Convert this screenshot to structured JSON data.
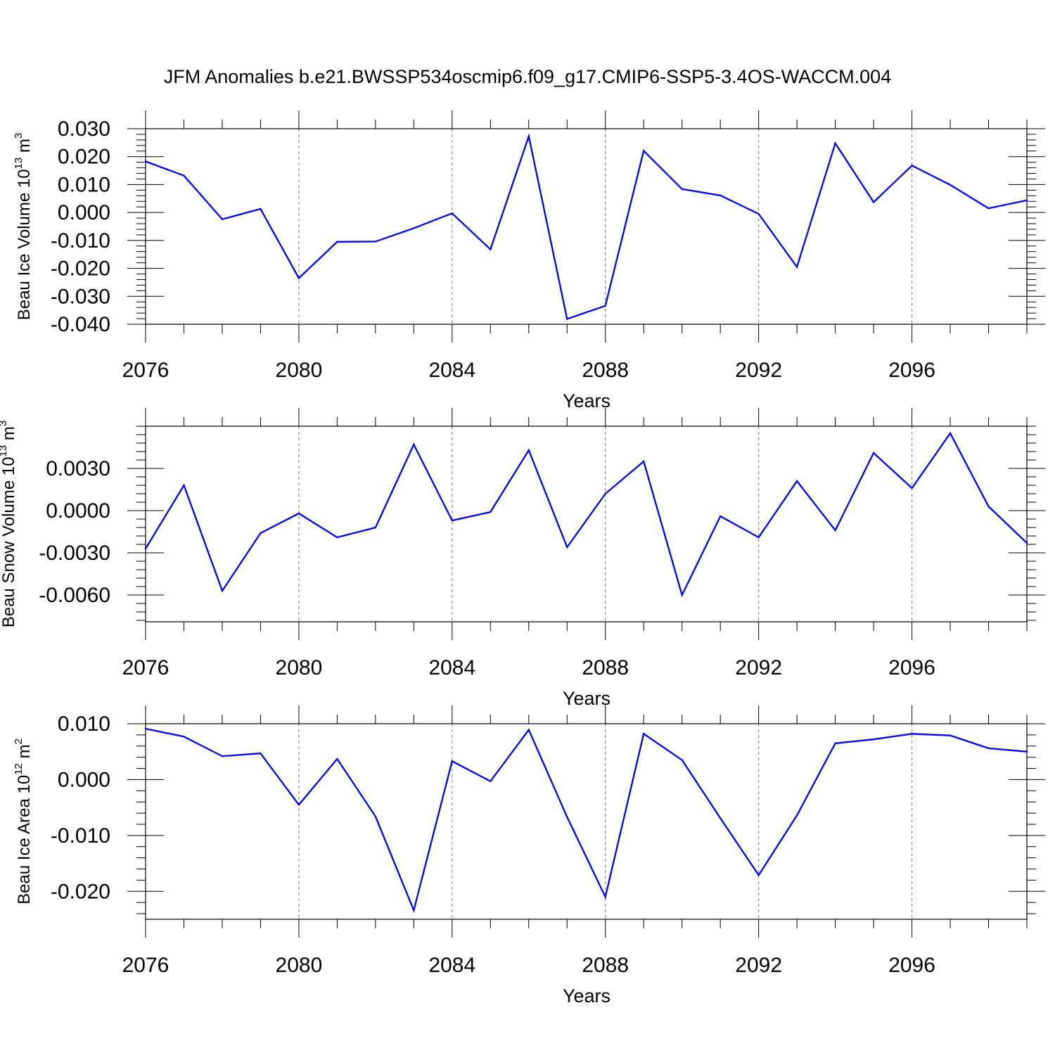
{
  "chart_data": {
    "title": "JFM Anomalies b.e21.BWSSP534oscmip6.f09_g17.CMIP6-SSP5-3.4OS-WACCM.004",
    "years": [
      2076,
      2077,
      2078,
      2079,
      2080,
      2081,
      2082,
      2083,
      2084,
      2085,
      2086,
      2087,
      2088,
      2089,
      2090,
      2091,
      2092,
      2093,
      2094,
      2095,
      2096,
      2097,
      2098,
      2099
    ],
    "panels": [
      {
        "type": "line",
        "ylabel": "Beau Ice Volume 10",
        "ylabel_exp": "13",
        "ylabel_unit": " m",
        "ylabel_unit_exp": "3",
        "xlabel": "Years",
        "xticks": [
          2076,
          2080,
          2084,
          2088,
          2092,
          2096
        ],
        "xlim": [
          2076,
          2099
        ],
        "ylim": [
          -0.04,
          0.03
        ],
        "yticks": [
          -0.04,
          -0.03,
          -0.02,
          -0.01,
          0.0,
          0.01,
          0.02,
          0.03
        ],
        "ytick_labels": [
          "-0.040",
          "-0.030",
          "-0.020",
          "-0.010",
          "0.000",
          "0.010",
          "0.020",
          "0.030"
        ],
        "minor_step": 0.002,
        "color": "#0000ff",
        "values": [
          0.0183,
          0.0132,
          -0.0024,
          0.0013,
          -0.0235,
          -0.0105,
          -0.0104,
          -0.0056,
          -0.0003,
          -0.0132,
          0.0273,
          -0.0381,
          -0.0334,
          0.0221,
          0.0084,
          0.0061,
          -0.0005,
          -0.0195,
          0.0248,
          0.0037,
          0.0168,
          0.0099,
          0.0015,
          0.0044
        ]
      },
      {
        "type": "line",
        "ylabel": "Beau Snow Volume 10",
        "ylabel_exp": "13",
        "ylabel_unit": " m",
        "ylabel_unit_exp": "3",
        "xlabel": "Years",
        "xticks": [
          2076,
          2080,
          2084,
          2088,
          2092,
          2096
        ],
        "xlim": [
          2076,
          2099
        ],
        "ylim": [
          -0.0079,
          0.006
        ],
        "yticks": [
          -0.006,
          -0.003,
          0.0,
          0.003
        ],
        "ytick_labels": [
          "-0.0060",
          "-0.0030",
          "0.0000",
          "0.0030"
        ],
        "minor_step": 0.0006,
        "color": "#0000ff",
        "values": [
          -0.0027,
          0.0018,
          -0.0057,
          -0.0016,
          -0.0002,
          -0.0019,
          -0.0012,
          0.0047,
          -0.0007,
          -0.0001,
          0.0043,
          -0.0026,
          0.0012,
          0.0035,
          -0.006,
          -0.0004,
          -0.0019,
          0.0021,
          -0.0014,
          0.0041,
          0.0016,
          0.0055,
          0.0003,
          -0.0023
        ]
      },
      {
        "type": "line",
        "ylabel": "Beau Ice Area 10",
        "ylabel_exp": "12",
        "ylabel_unit": " m",
        "ylabel_unit_exp": "2",
        "xlabel": "Years",
        "xticks": [
          2076,
          2080,
          2084,
          2088,
          2092,
          2096
        ],
        "xlim": [
          2076,
          2099
        ],
        "ylim": [
          -0.025,
          0.01
        ],
        "yticks": [
          -0.02,
          -0.01,
          0.0,
          0.01
        ],
        "ytick_labels": [
          "-0.020",
          "-0.010",
          "0.000",
          "0.010"
        ],
        "minor_step": 0.002,
        "color": "#0000ff",
        "values": [
          0.0091,
          0.0077,
          0.0042,
          0.0047,
          -0.0045,
          0.0037,
          -0.0066,
          -0.0234,
          0.0033,
          -0.0003,
          0.0089,
          -0.0067,
          -0.021,
          0.0082,
          0.0035,
          -0.0069,
          -0.0171,
          -0.0064,
          0.0065,
          0.0072,
          0.0082,
          0.0079,
          0.0056,
          0.005
        ]
      }
    ]
  }
}
